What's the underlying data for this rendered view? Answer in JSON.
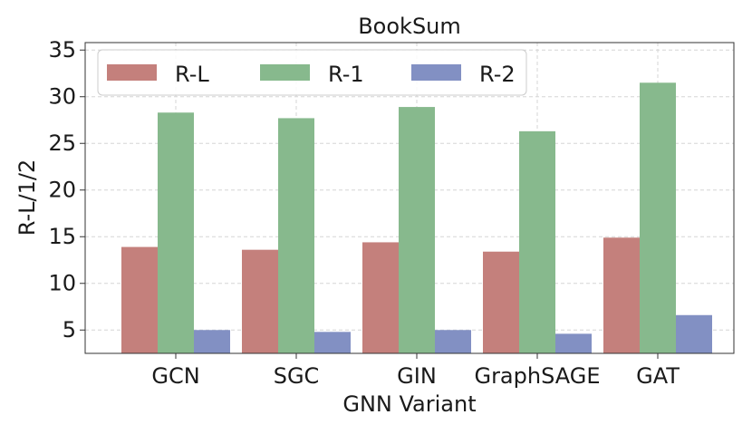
{
  "chart_data": {
    "type": "bar",
    "title": "BookSum",
    "xlabel": "GNN Variant",
    "ylabel": "R-L/1/2",
    "categories": [
      "GCN",
      "SGC",
      "GIN",
      "GraphSAGE",
      "GAT"
    ],
    "series": [
      {
        "name": "R-L",
        "color": "#c4807c",
        "values": [
          13.9,
          13.6,
          14.4,
          13.4,
          14.9
        ]
      },
      {
        "name": "R-1",
        "color": "#87b98d",
        "values": [
          28.3,
          27.7,
          28.9,
          26.3,
          31.5
        ]
      },
      {
        "name": "R-2",
        "color": "#8290c3",
        "values": [
          5.0,
          4.8,
          5.0,
          4.6,
          6.6
        ]
      }
    ],
    "ylim": [
      2.5,
      35.8
    ],
    "yticks": [
      5,
      10,
      15,
      20,
      25,
      30,
      35
    ],
    "grid": true,
    "legend": "top, horizontal"
  }
}
